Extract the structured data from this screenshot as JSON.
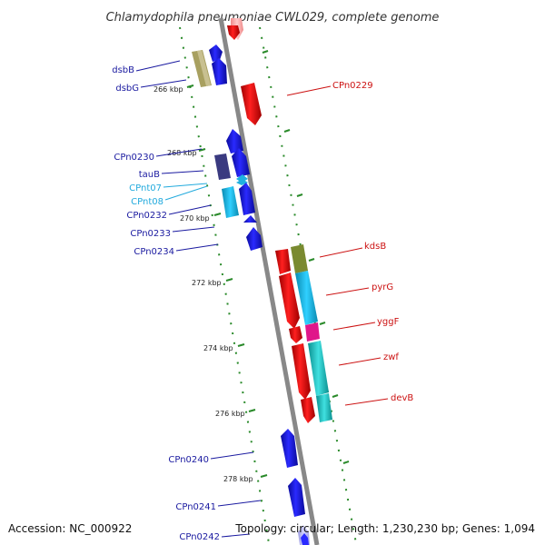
{
  "title": "Chlamydophila pneumoniae CWL029, complete genome",
  "footer": {
    "accession": "Accession: NC_000922",
    "topology": "Topology: circular; Length: 1,230,230 bp; Genes: 1,094"
  },
  "ticks": [
    "266 kbp",
    "268 kbp",
    "270 kbp",
    "272 kbp",
    "274 kbp",
    "276 kbp",
    "278 kbp"
  ],
  "genes_left": [
    "dsbB",
    "dsbG",
    "CPn0230",
    "tauB",
    "CPnt07",
    "CPnt08",
    "CPn0232",
    "CPn0233",
    "CPn0234",
    "CPn0240",
    "CPn0241",
    "CPn0242"
  ],
  "genes_right": [
    "CPn0229",
    "kdsB",
    "pyrG",
    "yggF",
    "zwf",
    "devB"
  ],
  "colors": {
    "forward_strand": "#1010e0",
    "reverse_strand": "#e01010",
    "trna": "#20b0e0",
    "label_blue": "#1a1aa0",
    "label_red": "#cc1111",
    "label_cyan": "#22aadd",
    "backbone": "#888888",
    "grid": "#2a8a2a"
  }
}
